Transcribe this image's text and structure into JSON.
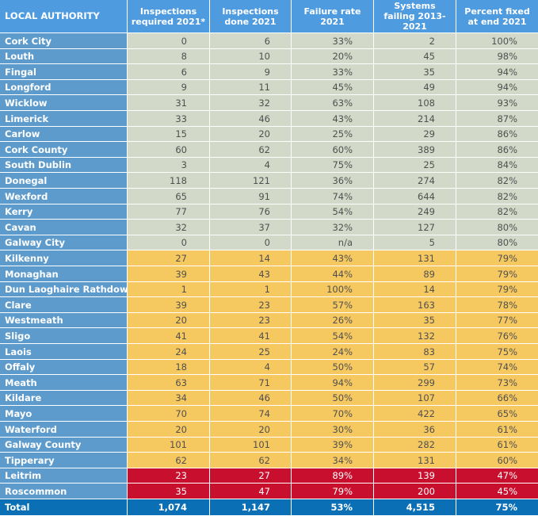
{
  "table": {
    "headers": [
      "LOCAL AUTHORITY",
      "Inspections required 2021*",
      "Inspections done 2021",
      "Failure rate 2021",
      "Systems failing 2013-2021",
      "Percent fixed at end  2021"
    ],
    "rows": [
      {
        "name": "Cork City",
        "band": "green",
        "values": [
          "0",
          "6",
          "33%",
          "2",
          "100%"
        ]
      },
      {
        "name": "Louth",
        "band": "green",
        "values": [
          "8",
          "10",
          "20%",
          "45",
          "98%"
        ]
      },
      {
        "name": "Fingal",
        "band": "green",
        "values": [
          "6",
          "9",
          "33%",
          "35",
          "94%"
        ]
      },
      {
        "name": "Longford",
        "band": "green",
        "values": [
          "9",
          "11",
          "45%",
          "49",
          "94%"
        ]
      },
      {
        "name": "Wicklow",
        "band": "green",
        "values": [
          "31",
          "32",
          "63%",
          "108",
          "93%"
        ]
      },
      {
        "name": "Limerick",
        "band": "green",
        "values": [
          "33",
          "46",
          "43%",
          "214",
          "87%"
        ]
      },
      {
        "name": "Carlow",
        "band": "green",
        "values": [
          "15",
          "20",
          "25%",
          "29",
          "86%"
        ]
      },
      {
        "name": "Cork County",
        "band": "green",
        "values": [
          "60",
          "62",
          "60%",
          "389",
          "86%"
        ]
      },
      {
        "name": "South Dublin",
        "band": "green",
        "values": [
          "3",
          "4",
          "75%",
          "25",
          "84%"
        ]
      },
      {
        "name": "Donegal",
        "band": "green",
        "values": [
          "118",
          "121",
          "36%",
          "274",
          "82%"
        ]
      },
      {
        "name": "Wexford",
        "band": "green",
        "values": [
          "65",
          "91",
          "74%",
          "644",
          "82%"
        ]
      },
      {
        "name": "Kerry",
        "band": "green",
        "values": [
          "77",
          "76",
          "54%",
          "249",
          "82%"
        ]
      },
      {
        "name": "Cavan",
        "band": "green",
        "values": [
          "32",
          "37",
          "32%",
          "127",
          "80%"
        ]
      },
      {
        "name": "Galway City",
        "band": "green",
        "values": [
          "0",
          "0",
          "n/a",
          "5",
          "80%"
        ]
      },
      {
        "name": "Kilkenny",
        "band": "yellow",
        "values": [
          "27",
          "14",
          "43%",
          "131",
          "79%"
        ]
      },
      {
        "name": "Monaghan",
        "band": "yellow",
        "values": [
          "39",
          "43",
          "44%",
          "89",
          "79%"
        ]
      },
      {
        "name": "Dun Laoghaire Rathdown",
        "band": "yellow",
        "values": [
          "1",
          "1",
          "100%",
          "14",
          "79%"
        ]
      },
      {
        "name": "Clare",
        "band": "yellow",
        "values": [
          "39",
          "23",
          "57%",
          "163",
          "78%"
        ]
      },
      {
        "name": "Westmeath",
        "band": "yellow",
        "values": [
          "20",
          "23",
          "26%",
          "35",
          "77%"
        ]
      },
      {
        "name": "Sligo",
        "band": "yellow",
        "values": [
          "41",
          "41",
          "54%",
          "132",
          "76%"
        ]
      },
      {
        "name": "Laois",
        "band": "yellow",
        "values": [
          "24",
          "25",
          "24%",
          "83",
          "75%"
        ]
      },
      {
        "name": "Offaly",
        "band": "yellow",
        "values": [
          "18",
          "4",
          "50%",
          "57",
          "74%"
        ]
      },
      {
        "name": "Meath",
        "band": "yellow",
        "values": [
          "63",
          "71",
          "94%",
          "299",
          "73%"
        ]
      },
      {
        "name": "Kildare",
        "band": "yellow",
        "values": [
          "34",
          "46",
          "50%",
          "107",
          "66%"
        ]
      },
      {
        "name": "Mayo",
        "band": "yellow",
        "values": [
          "70",
          "74",
          "70%",
          "422",
          "65%"
        ]
      },
      {
        "name": "Waterford",
        "band": "yellow",
        "values": [
          "20",
          "20",
          "30%",
          "36",
          "61%"
        ]
      },
      {
        "name": "Galway County",
        "band": "yellow",
        "values": [
          "101",
          "101",
          "39%",
          "282",
          "61%"
        ]
      },
      {
        "name": "Tipperary",
        "band": "yellow",
        "values": [
          "62",
          "62",
          "34%",
          "131",
          "60%"
        ]
      },
      {
        "name": "Leitrim",
        "band": "red",
        "values": [
          "23",
          "27",
          "89%",
          "139",
          "47%"
        ]
      },
      {
        "name": "Roscommon",
        "band": "red",
        "values": [
          "35",
          "47",
          "79%",
          "200",
          "45%"
        ]
      }
    ],
    "total": {
      "name": "Total",
      "values": [
        "1,074",
        "1,147",
        "53%",
        "4,515",
        "75%"
      ]
    }
  }
}
